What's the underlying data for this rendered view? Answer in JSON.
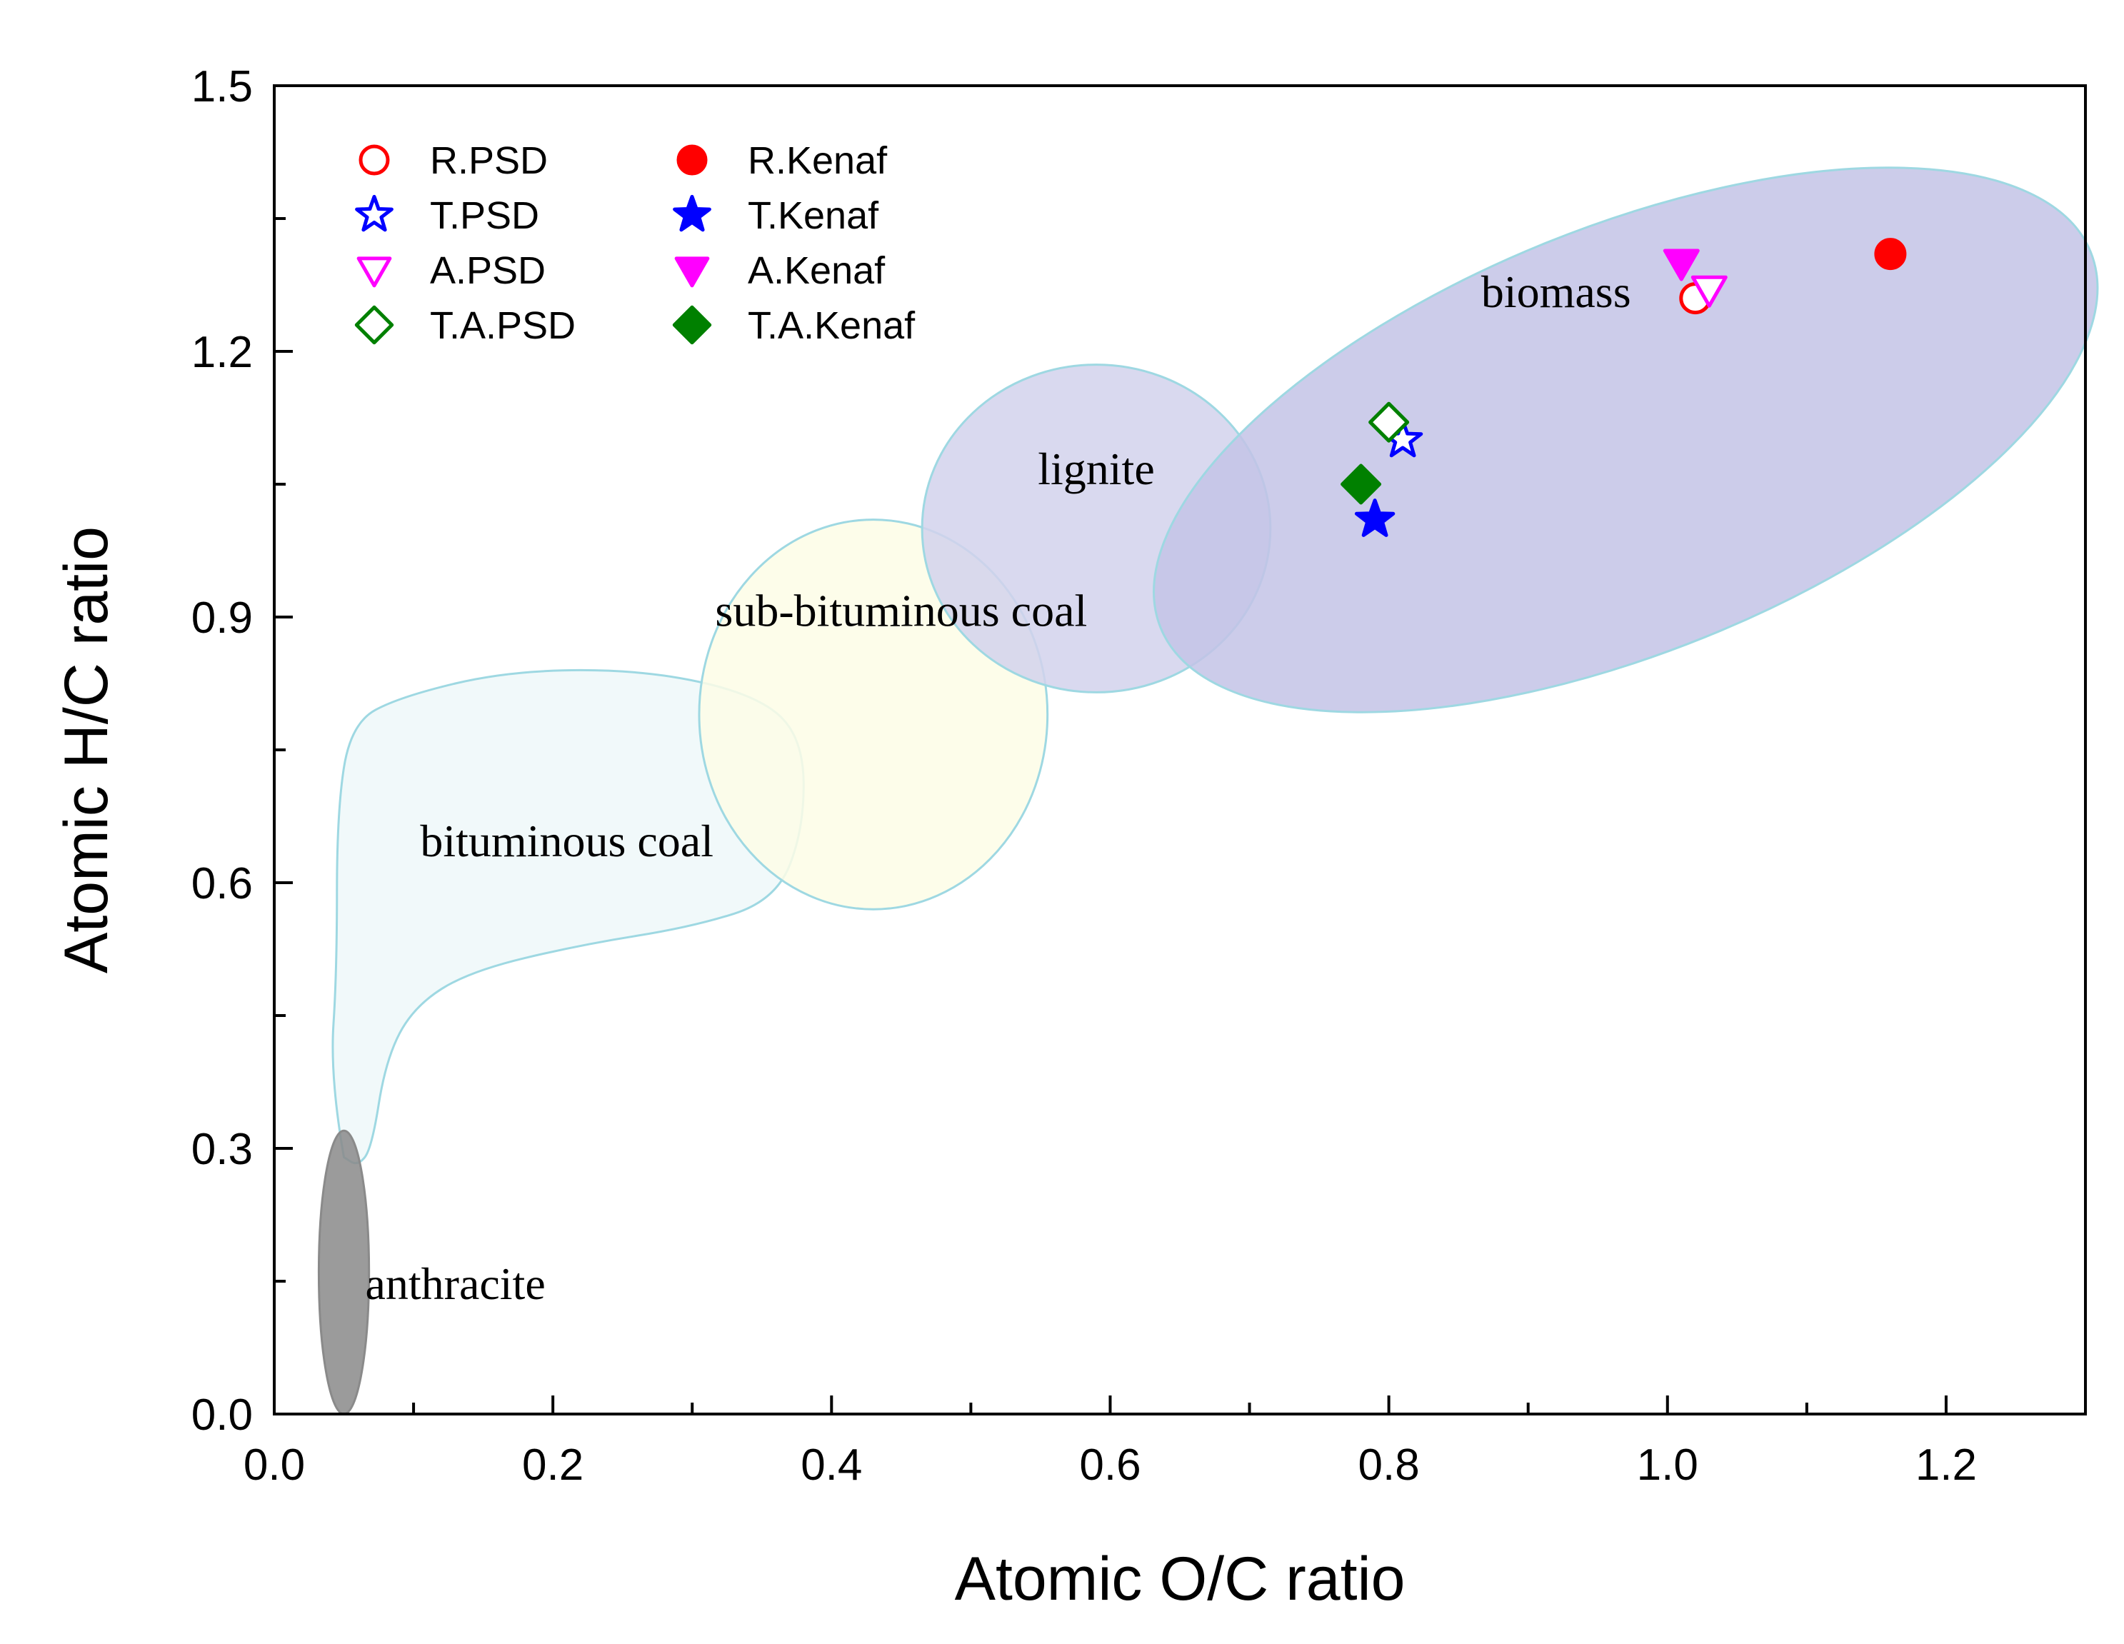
{
  "chart_data": {
    "type": "scatter",
    "xlabel": "Atomic O/C ratio",
    "ylabel": "Atomic H/C ratio",
    "xlim": [
      0.0,
      1.3
    ],
    "ylim": [
      0.0,
      1.5
    ],
    "x_ticks": [
      "0.0",
      "0.2",
      "0.4",
      "0.6",
      "0.8",
      "1.0",
      "1.2"
    ],
    "y_ticks": [
      "0.0",
      "0.3",
      "0.6",
      "0.9",
      "1.2",
      "1.5"
    ],
    "regions": [
      {
        "name": "bituminous coal",
        "label": "bituminous  coal",
        "fill": "#f0f8fa",
        "stroke": "#9ed8e2",
        "label_at": [
          0.21,
          0.63
        ]
      },
      {
        "name": "sub-bituminous coal",
        "label": "sub-bituminous  coal",
        "fill": "#fdfde6",
        "stroke": "#9ed8e2",
        "center": [
          0.43,
          0.79
        ],
        "radius": [
          0.125,
          0.22
        ],
        "label_at": [
          0.45,
          0.89
        ]
      },
      {
        "name": "lignite",
        "label": "lignite",
        "fill": "#d2d2ec",
        "stroke": "#9ed8e2",
        "center": [
          0.59,
          1.0
        ],
        "radius": [
          0.125,
          0.185
        ],
        "label_at": [
          0.59,
          1.05
        ]
      },
      {
        "name": "biomass",
        "label": "biomass",
        "fill": "#c3c3e6",
        "stroke": "#9ed8e2",
        "center": [
          0.97,
          1.1
        ],
        "radius": [
          0.36,
          0.24
        ],
        "rotation_deg": -22,
        "label_at": [
          0.92,
          1.25
        ]
      },
      {
        "name": "anthracite",
        "label": "anthracite",
        "fill": "#8a8a8a",
        "stroke": "#8a8a8a",
        "center": [
          0.05,
          0.16
        ],
        "radius": [
          0.018,
          0.16
        ],
        "label_at": [
          0.13,
          0.13
        ]
      }
    ],
    "series": [
      {
        "name": "R.PSD",
        "marker": "circle",
        "filled": false,
        "color": "#ff0000",
        "x": 1.02,
        "y": 1.26
      },
      {
        "name": "T.PSD",
        "marker": "star",
        "filled": false,
        "color": "#0000ff",
        "x": 0.81,
        "y": 1.1
      },
      {
        "name": "A.PSD",
        "marker": "triangle-down",
        "filled": false,
        "color": "#ff00ff",
        "x": 1.03,
        "y": 1.27
      },
      {
        "name": "T.A.PSD",
        "marker": "diamond",
        "filled": false,
        "color": "#008000",
        "x": 0.8,
        "y": 1.12
      },
      {
        "name": "R.Kenaf",
        "marker": "circle",
        "filled": true,
        "color": "#ff0000",
        "x": 1.16,
        "y": 1.31
      },
      {
        "name": "T.Kenaf",
        "marker": "star",
        "filled": true,
        "color": "#0000ff",
        "x": 0.79,
        "y": 1.01
      },
      {
        "name": "A.Kenaf",
        "marker": "triangle-down",
        "filled": true,
        "color": "#ff00ff",
        "x": 1.01,
        "y": 1.3
      },
      {
        "name": "T.A.Kenaf",
        "marker": "diamond",
        "filled": true,
        "color": "#008000",
        "x": 0.78,
        "y": 1.05
      }
    ],
    "legend": {
      "placement": "top-left",
      "columns": 2,
      "order": [
        "R.PSD",
        "T.PSD",
        "A.PSD",
        "T.A.PSD",
        "R.Kenaf",
        "T.Kenaf",
        "A.Kenaf",
        "T.A.Kenaf"
      ]
    }
  }
}
